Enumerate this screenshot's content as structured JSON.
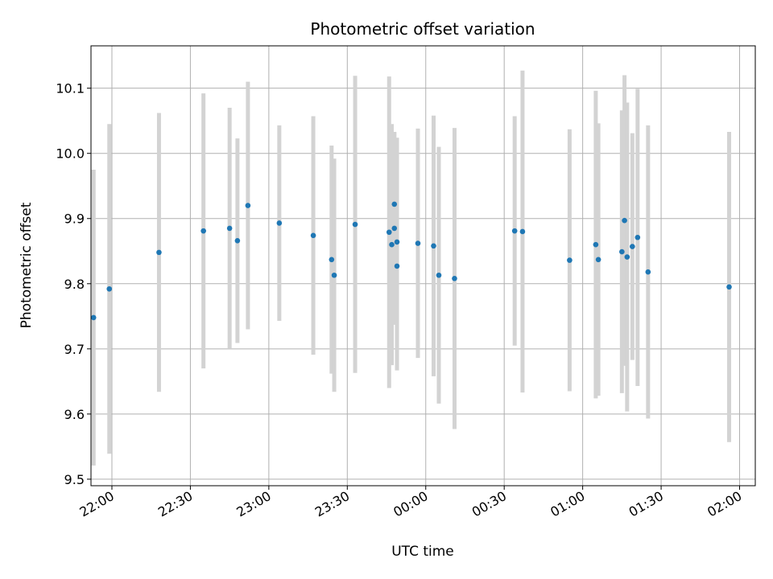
{
  "chart_data": {
    "type": "scatter",
    "title": "Photometric offset variation",
    "xlabel": "UTC time",
    "ylabel": "Photometric offset",
    "x_is_time": true,
    "xlim": [
      "21:52",
      "02:06"
    ],
    "ylim": [
      9.49,
      10.165
    ],
    "x_ticks": [
      "22:00",
      "22:30",
      "23:00",
      "23:30",
      "00:00",
      "00:30",
      "01:00",
      "01:30",
      "02:00"
    ],
    "y_ticks": [
      9.5,
      9.6,
      9.7,
      9.8,
      9.9,
      10.0,
      10.1
    ],
    "y_tick_labels": [
      "9.5",
      "9.6",
      "9.7",
      "9.8",
      "9.9",
      "10.0",
      "10.1"
    ],
    "grid": true,
    "point_color": "#1f77b4",
    "errorbar_color": "#d3d3d3",
    "points": [
      {
        "x": "21:53",
        "y": 9.748,
        "err": 0.227
      },
      {
        "x": "21:59",
        "y": 9.792,
        "err": 0.253
      },
      {
        "x": "22:18",
        "y": 9.848,
        "err": 0.214
      },
      {
        "x": "22:35",
        "y": 9.881,
        "err": 0.211
      },
      {
        "x": "22:45",
        "y": 9.885,
        "err": 0.185
      },
      {
        "x": "22:48",
        "y": 9.866,
        "err": 0.157
      },
      {
        "x": "22:52",
        "y": 9.92,
        "err": 0.19
      },
      {
        "x": "23:04",
        "y": 9.893,
        "err": 0.15
      },
      {
        "x": "23:17",
        "y": 9.874,
        "err": 0.183
      },
      {
        "x": "23:24",
        "y": 9.837,
        "err": 0.175
      },
      {
        "x": "23:25",
        "y": 9.813,
        "err": 0.179
      },
      {
        "x": "23:33",
        "y": 9.891,
        "err": 0.228
      },
      {
        "x": "23:46",
        "y": 9.879,
        "err": 0.239
      },
      {
        "x": "23:47",
        "y": 9.86,
        "err": 0.185
      },
      {
        "x": "23:48",
        "y": 9.885,
        "err": 0.148
      },
      {
        "x": "23:48",
        "y": 9.922,
        "err": 0.11
      },
      {
        "x": "23:49",
        "y": 9.864,
        "err": 0.16
      },
      {
        "x": "23:49",
        "y": 9.827,
        "err": 0.16
      },
      {
        "x": "23:57",
        "y": 9.862,
        "err": 0.176
      },
      {
        "x": "00:03",
        "y": 9.858,
        "err": 0.2
      },
      {
        "x": "00:05",
        "y": 9.813,
        "err": 0.197
      },
      {
        "x": "00:11",
        "y": 9.808,
        "err": 0.231
      },
      {
        "x": "00:34",
        "y": 9.881,
        "err": 0.176
      },
      {
        "x": "00:37",
        "y": 9.88,
        "err": 0.247
      },
      {
        "x": "00:55",
        "y": 9.836,
        "err": 0.201
      },
      {
        "x": "01:05",
        "y": 9.86,
        "err": 0.236
      },
      {
        "x": "01:06",
        "y": 9.837,
        "err": 0.209
      },
      {
        "x": "01:15",
        "y": 9.849,
        "err": 0.217
      },
      {
        "x": "01:16",
        "y": 9.897,
        "err": 0.223
      },
      {
        "x": "01:17",
        "y": 9.841,
        "err": 0.237
      },
      {
        "x": "01:19",
        "y": 9.857,
        "err": 0.174
      },
      {
        "x": "01:21",
        "y": 9.871,
        "err": 0.228
      },
      {
        "x": "01:25",
        "y": 9.818,
        "err": 0.225
      },
      {
        "x": "01:56",
        "y": 9.795,
        "err": 0.238
      }
    ]
  }
}
